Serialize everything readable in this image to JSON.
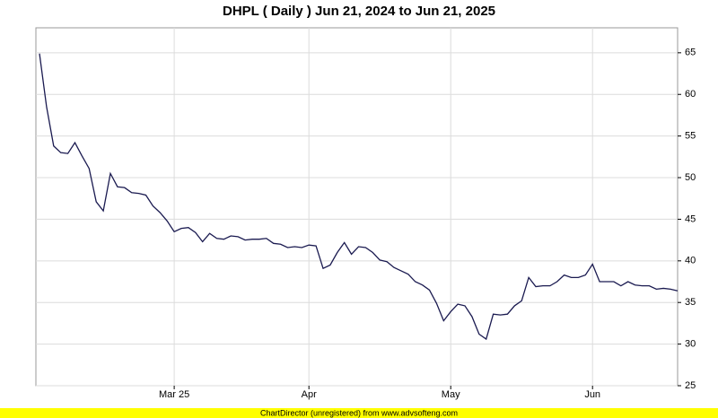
{
  "chart_data": {
    "type": "line",
    "title": "DHPL ( Daily ) Jun 21, 2024 to Jun 21, 2025",
    "footer": "ChartDirector (unregistered) from www.advsofteng.com",
    "categories": [
      null,
      null,
      null,
      null,
      null,
      null,
      null,
      null,
      null,
      null,
      null,
      null,
      null,
      null,
      null,
      null,
      null,
      null,
      null,
      "Mar 25",
      null,
      null,
      null,
      null,
      null,
      null,
      null,
      null,
      null,
      null,
      null,
      null,
      null,
      null,
      null,
      null,
      null,
      null,
      "Apr",
      null,
      null,
      null,
      null,
      null,
      null,
      null,
      null,
      null,
      null,
      null,
      null,
      null,
      null,
      null,
      null,
      null,
      null,
      null,
      "May",
      null,
      null,
      null,
      null,
      null,
      null,
      null,
      null,
      null,
      null,
      null,
      null,
      null,
      null,
      null,
      null,
      null,
      null,
      null,
      "Jun",
      null,
      null,
      null,
      null,
      null,
      null,
      null,
      null,
      null,
      null,
      null,
      null
    ],
    "series": [
      {
        "color": "#1a1a50",
        "values": [
          64.9,
          58.5,
          53.8,
          53.0,
          52.9,
          54.2,
          52.6,
          51.1,
          47.1,
          46.0,
          50.5,
          48.9,
          48.8,
          48.2,
          48.1,
          47.9,
          46.6,
          45.8,
          44.8,
          43.5,
          43.9,
          44.0,
          43.4,
          42.3,
          43.3,
          42.7,
          42.6,
          43.0,
          42.9,
          42.5,
          42.6,
          42.6,
          42.7,
          42.1,
          42.0,
          41.6,
          41.7,
          41.6,
          41.9,
          41.8,
          39.1,
          39.5,
          41.0,
          42.2,
          40.8,
          41.7,
          41.6,
          41.0,
          40.1,
          39.9,
          39.2,
          38.8,
          38.4,
          37.5,
          37.1,
          36.5,
          34.9,
          32.8,
          33.9,
          34.8,
          34.6,
          33.3,
          31.2,
          30.6,
          33.6,
          33.5,
          33.6,
          34.6,
          35.2,
          38.0,
          36.9,
          37.0,
          37.0,
          37.5,
          38.3,
          38.0,
          38.0,
          38.3,
          39.6,
          37.5,
          37.5,
          37.5,
          37.0,
          37.5,
          37.1,
          37.0,
          37.0,
          36.6,
          36.7,
          36.6,
          36.4
        ]
      }
    ],
    "ylim": [
      25,
      68
    ],
    "yticks": [
      25,
      30,
      35,
      40,
      45,
      50,
      55,
      60,
      65
    ],
    "grid": true
  }
}
